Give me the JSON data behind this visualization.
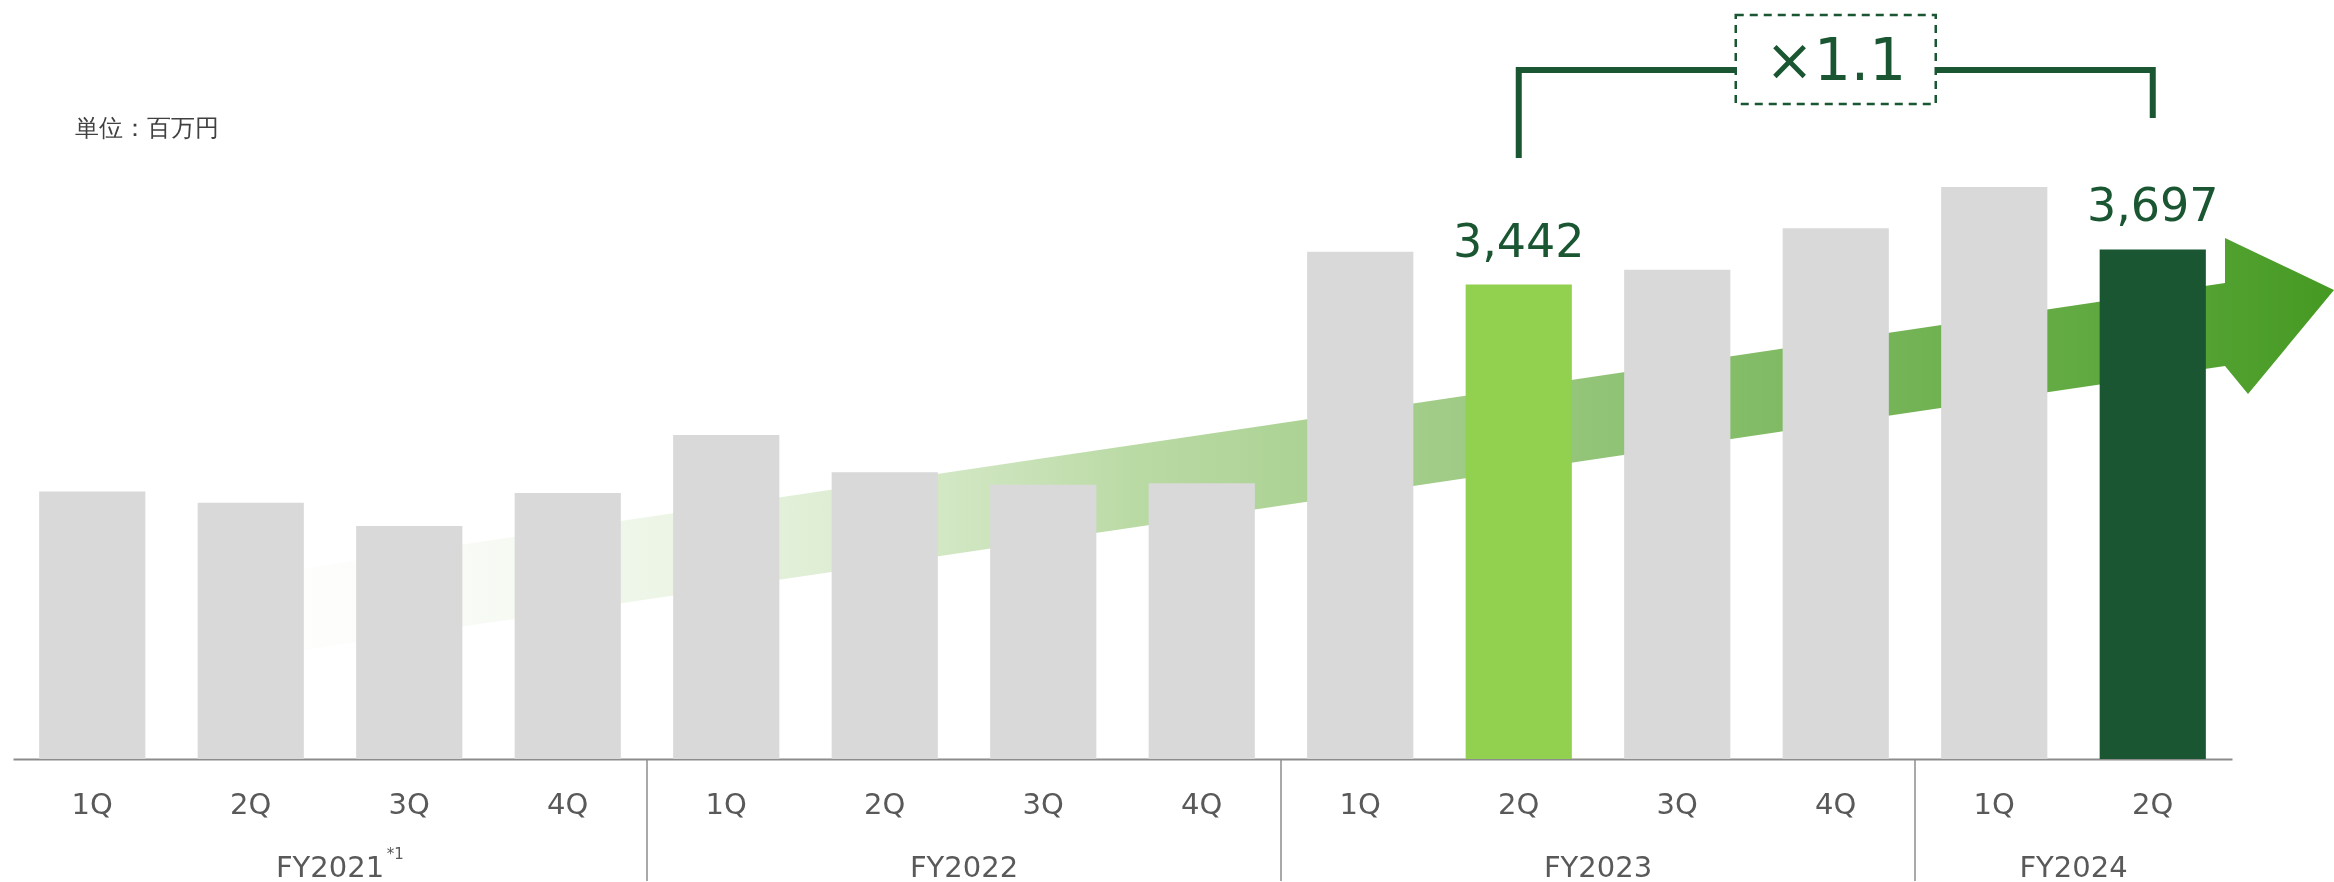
{
  "chart_data": {
    "type": "bar",
    "ylabel": "単位：百万円",
    "categories": [
      "1Q",
      "2Q",
      "3Q",
      "4Q",
      "1Q",
      "2Q",
      "3Q",
      "4Q",
      "1Q",
      "2Q",
      "3Q",
      "4Q",
      "1Q",
      "2Q"
    ],
    "values": [
      1940,
      1860,
      1690,
      1930,
      2350,
      2080,
      1990,
      2000,
      3680,
      3442,
      3550,
      3850,
      4150,
      3697
    ],
    "colors": [
      "#d9d9d9",
      "#d9d9d9",
      "#d9d9d9",
      "#d9d9d9",
      "#d9d9d9",
      "#d9d9d9",
      "#d9d9d9",
      "#d9d9d9",
      "#d9d9d9",
      "#92d050",
      "#d9d9d9",
      "#d9d9d9",
      "#d9d9d9",
      "#1a5632"
    ],
    "value_labels": [
      null,
      null,
      null,
      null,
      null,
      null,
      null,
      null,
      null,
      "3,442",
      null,
      null,
      null,
      "3,697"
    ],
    "annotations": [
      "FY2021$^{*1}$",
      "FY2022",
      "FY2023",
      "FY2024",
      "×1.1"
    ]
  }
}
